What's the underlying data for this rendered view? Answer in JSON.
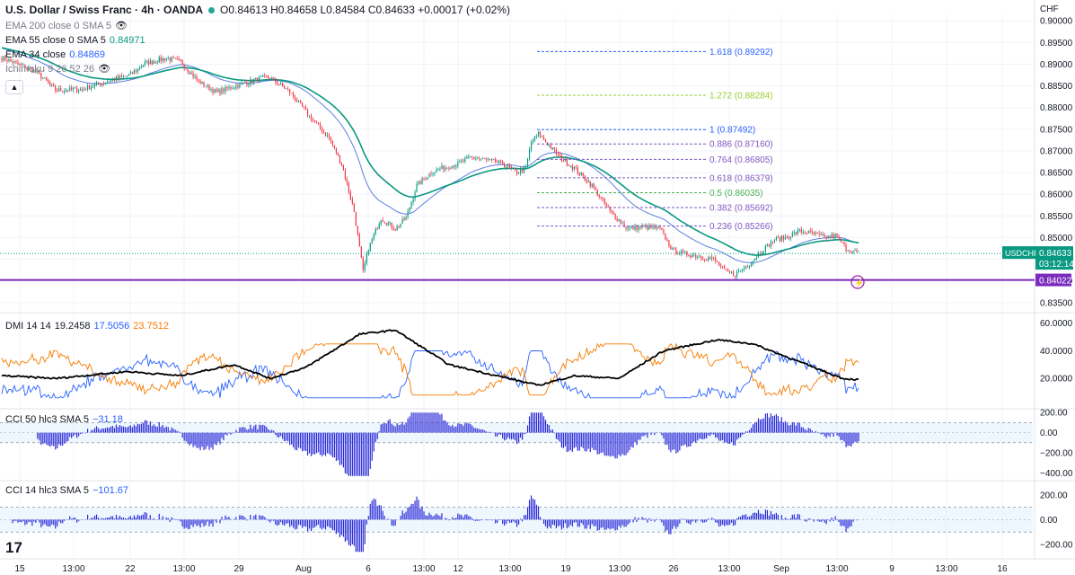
{
  "header": {
    "symbol": "U.S. Dollar / Swiss Franc · 4h · OANDA",
    "ohlc": "O0.84613 H0.84658 L0.84584 C0.84633 +0.00017 (+0.02%)"
  },
  "currency_label": "CHF",
  "legend": [
    {
      "name": "EMA 200 close 0 SMA 5",
      "value": ""
    },
    {
      "name": "EMA 55 close 0 SMA 5",
      "value": "0.84971"
    },
    {
      "name": "EMA 34 close",
      "value": "0.84869"
    },
    {
      "name": "Ichimoku 9 26 52 26",
      "value": ""
    }
  ],
  "dmi_legend": {
    "name": "DMI 14 14",
    "adx": "19.2458",
    "plus": "17.5056",
    "minus": "23.7512"
  },
  "cci50_legend": {
    "name": "CCI 50 hlc3 SMA 5",
    "value": "−31.18"
  },
  "cci14_legend": {
    "name": "CCI 14 hlc3 SMA 5",
    "value": "−101.67"
  },
  "colors": {
    "up": "#089981",
    "down": "#f23645",
    "ema55": "#089981",
    "ema34": "#5b7fe0",
    "support": "#7b2cbf",
    "adx": "#000000",
    "plus_di": "#2962ff",
    "minus_di": "#f57c00",
    "cci": "#2a2ad8"
  },
  "chart_data": {
    "type": "candlestick",
    "price_axis": {
      "ticks": [
        "0.90000",
        "0.89500",
        "0.89000",
        "0.88500",
        "0.88000",
        "0.87500",
        "0.87000",
        "0.86500",
        "0.86000",
        "0.85500",
        "0.85000",
        "0.84500",
        "0.84000",
        "0.83500"
      ],
      "range": [
        0.8335,
        0.9015
      ]
    },
    "time_axis": [
      "15",
      "13:00",
      "22",
      "13:00",
      "29",
      "Aug",
      "6",
      "13:00",
      "12",
      "13:00",
      "19",
      "13:00",
      "26",
      "13:00",
      "Sep",
      "13:00",
      "9",
      "13:00",
      "16"
    ],
    "current_price": {
      "label": "USDCHF",
      "value": "0.84633",
      "countdown": "03:12:14"
    },
    "support_level": {
      "value": 0.84022,
      "label": "0.84022"
    },
    "fibonacci": [
      {
        "ratio": "1.618",
        "value": "0.89292"
      },
      {
        "ratio": "1.272",
        "value": "0.88284"
      },
      {
        "ratio": "1",
        "value": "0.87492"
      },
      {
        "ratio": "0.886",
        "value": "0.87160"
      },
      {
        "ratio": "0.764",
        "value": "0.86805"
      },
      {
        "ratio": "0.618",
        "value": "0.86379"
      },
      {
        "ratio": "0.5",
        "value": "0.86035"
      },
      {
        "ratio": "0.382",
        "value": "0.85692"
      },
      {
        "ratio": "0.236",
        "value": "0.85266"
      }
    ],
    "path_keyframes": [
      [
        0,
        0.8915
      ],
      [
        12,
        0.8895
      ],
      [
        20,
        0.888
      ],
      [
        30,
        0.884
      ],
      [
        45,
        0.8842
      ],
      [
        60,
        0.8862
      ],
      [
        72,
        0.8876
      ],
      [
        80,
        0.8902
      ],
      [
        92,
        0.8914
      ],
      [
        100,
        0.8905
      ],
      [
        110,
        0.886
      ],
      [
        120,
        0.8835
      ],
      [
        127,
        0.8845
      ],
      [
        135,
        0.8855
      ],
      [
        145,
        0.8868
      ],
      [
        150,
        0.8869
      ],
      [
        160,
        0.884
      ],
      [
        172,
        0.878
      ],
      [
        183,
        0.873
      ],
      [
        190,
        0.867
      ],
      [
        197,
        0.856
      ],
      [
        202,
        0.842
      ],
      [
        205,
        0.8475
      ],
      [
        212,
        0.8545
      ],
      [
        220,
        0.852
      ],
      [
        226,
        0.8545
      ],
      [
        232,
        0.862
      ],
      [
        240,
        0.865
      ],
      [
        246,
        0.866
      ],
      [
        255,
        0.867
      ],
      [
        262,
        0.8685
      ],
      [
        270,
        0.868
      ],
      [
        280,
        0.867
      ],
      [
        288,
        0.865
      ],
      [
        293,
        0.866
      ],
      [
        296,
        0.872
      ],
      [
        300,
        0.874
      ],
      [
        312,
        0.8685
      ],
      [
        320,
        0.866
      ],
      [
        330,
        0.862
      ],
      [
        340,
        0.856
      ],
      [
        350,
        0.852
      ],
      [
        358,
        0.8525
      ],
      [
        368,
        0.852
      ],
      [
        375,
        0.847
      ],
      [
        385,
        0.846
      ],
      [
        398,
        0.845
      ],
      [
        405,
        0.842
      ],
      [
        410,
        0.8415
      ],
      [
        418,
        0.844
      ],
      [
        425,
        0.847
      ],
      [
        432,
        0.8495
      ],
      [
        438,
        0.85
      ],
      [
        446,
        0.8515
      ],
      [
        453,
        0.851
      ],
      [
        460,
        0.85
      ],
      [
        466,
        0.8505
      ],
      [
        472,
        0.8475
      ],
      [
        480,
        0.8463
      ]
    ],
    "series_count": 480,
    "indicators": {
      "dmi": {
        "axis_ticks": [
          "60.0000",
          "40.0000",
          "20.0000"
        ],
        "range": [
          0,
          65
        ]
      },
      "cci50": {
        "axis_ticks": [
          "200.00",
          "0.00",
          "−200.00",
          "−400.00"
        ],
        "range": [
          -450,
          220
        ],
        "bands": [
          100,
          -100
        ]
      },
      "cci14": {
        "axis_ticks": [
          "200.00",
          "0.00",
          "−200.00"
        ],
        "range": [
          -280,
          300
        ],
        "bands": [
          100,
          -100
        ]
      }
    }
  },
  "logo": "17"
}
